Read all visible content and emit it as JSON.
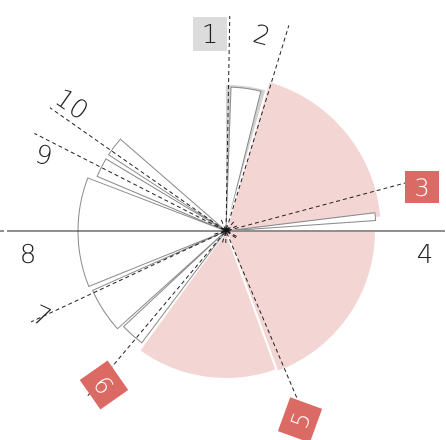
{
  "diagram": {
    "center_marker": "star-marker",
    "colors": {
      "grey_sector": "#d2d2d2",
      "pink_sector": "#f3d6d3",
      "outline_sector": "#ffffff",
      "outline_stroke": "#8a8a8a",
      "axis_line": "#222222",
      "badge_grey": "#dcdcdc",
      "badge_red": "#dc6a64"
    },
    "sectors": [
      {
        "label": "1",
        "style": "grey",
        "start": 270,
        "end": 314,
        "radius": 146
      },
      {
        "label": "2",
        "style": "outline",
        "start": 272,
        "end": 284,
        "radius": 144
      },
      {
        "label": "pink-large-right",
        "style": "pink",
        "start": 286,
        "end": 355,
        "radius": 156
      },
      {
        "label": "3",
        "style": "outline",
        "start": 353,
        "end": 356,
        "radius": 150
      },
      {
        "label": "4",
        "style": "pink",
        "start": 0,
        "end": 70,
        "radius": 150
      },
      {
        "label": "5",
        "style": "pink",
        "start": 70,
        "end": 126,
        "radius": 148
      },
      {
        "label": "6",
        "style": "outline",
        "start": 127,
        "end": 137,
        "radius": 140
      },
      {
        "label": "7",
        "style": "outline",
        "start": 138,
        "end": 156,
        "radius": 146
      },
      {
        "label": "8",
        "style": "outline",
        "start": 158,
        "end": 180,
        "radius": 148
      },
      {
        "label": "8b",
        "style": "outline",
        "start": 180,
        "end": 201,
        "radius": 148
      },
      {
        "label": "9",
        "style": "outline",
        "start": 203,
        "end": 211,
        "radius": 140
      },
      {
        "label": "10",
        "style": "outline",
        "start": 213,
        "end": 221,
        "radius": 140
      }
    ],
    "axes": [
      {
        "label": "1",
        "angle": 271,
        "style": "badge-grey",
        "rotate": 0
      },
      {
        "label": "2",
        "angle": 287,
        "style": "plain",
        "rotate": 15
      },
      {
        "label": "3",
        "angle": 345,
        "style": "badge-red",
        "rotate": 0
      },
      {
        "label": "4",
        "angle": 0,
        "style": "plain",
        "rotate": 0
      },
      {
        "label": "5",
        "angle": 67,
        "style": "badge-red",
        "rotate": -70
      },
      {
        "label": "6",
        "angle": 130,
        "style": "badge-red",
        "rotate": 55
      },
      {
        "label": "7",
        "angle": 155,
        "style": "plain",
        "rotate": 25
      },
      {
        "label": "8",
        "angle": 180,
        "style": "plain",
        "rotate": 0
      },
      {
        "label": "9",
        "angle": 207,
        "style": "plain",
        "rotate": 15
      },
      {
        "label": "10",
        "angle": 215,
        "style": "plain",
        "rotate": 35
      }
    ]
  }
}
